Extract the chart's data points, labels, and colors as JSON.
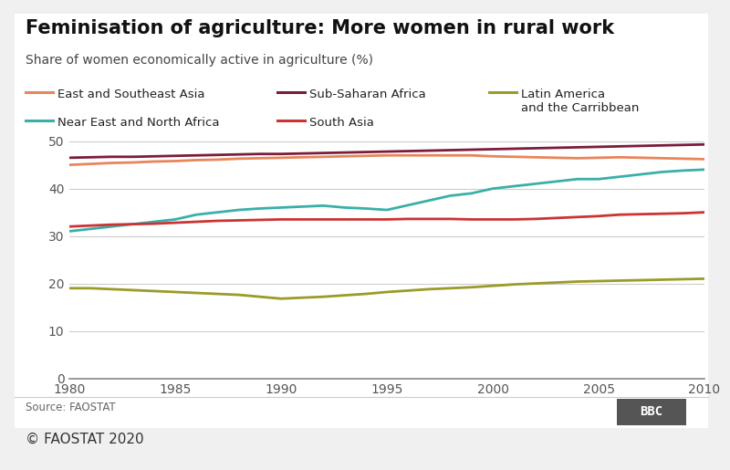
{
  "title": "Feminisation of agriculture: More women in rural work",
  "subtitle": "Share of women economically active in agriculture (%)",
  "source": "Source: FAOSTAT",
  "copyright": "© FAOSTAT 2020",
  "years": [
    1980,
    1981,
    1982,
    1983,
    1984,
    1985,
    1986,
    1987,
    1988,
    1989,
    1990,
    1991,
    1992,
    1993,
    1994,
    1995,
    1996,
    1997,
    1998,
    1999,
    2000,
    2001,
    2002,
    2003,
    2004,
    2005,
    2006,
    2007,
    2008,
    2009,
    2010
  ],
  "series": {
    "East and Southeast Asia": {
      "color": "#E8855A",
      "values": [
        45.0,
        45.2,
        45.4,
        45.5,
        45.7,
        45.8,
        46.0,
        46.1,
        46.3,
        46.4,
        46.5,
        46.6,
        46.7,
        46.8,
        46.9,
        47.0,
        47.0,
        47.0,
        47.0,
        47.0,
        46.8,
        46.7,
        46.6,
        46.5,
        46.4,
        46.5,
        46.6,
        46.5,
        46.4,
        46.3,
        46.2
      ]
    },
    "Sub-Saharan Africa": {
      "color": "#7B1D3A",
      "values": [
        46.5,
        46.6,
        46.7,
        46.7,
        46.8,
        46.9,
        47.0,
        47.1,
        47.2,
        47.3,
        47.3,
        47.4,
        47.5,
        47.6,
        47.7,
        47.8,
        47.9,
        48.0,
        48.1,
        48.2,
        48.3,
        48.4,
        48.5,
        48.6,
        48.7,
        48.8,
        48.9,
        49.0,
        49.1,
        49.2,
        49.3
      ]
    },
    "Latin America\nand the Carribbean": {
      "color": "#9B9B27",
      "values": [
        19.0,
        19.0,
        18.8,
        18.6,
        18.4,
        18.2,
        18.0,
        17.8,
        17.6,
        17.2,
        16.8,
        17.0,
        17.2,
        17.5,
        17.8,
        18.2,
        18.5,
        18.8,
        19.0,
        19.2,
        19.5,
        19.8,
        20.0,
        20.2,
        20.4,
        20.5,
        20.6,
        20.7,
        20.8,
        20.9,
        21.0
      ]
    },
    "Near East and North Africa": {
      "color": "#3AAFA9",
      "values": [
        31.0,
        31.5,
        32.0,
        32.5,
        33.0,
        33.5,
        34.5,
        35.0,
        35.5,
        35.8,
        36.0,
        36.2,
        36.4,
        36.0,
        35.8,
        35.5,
        36.5,
        37.5,
        38.5,
        39.0,
        40.0,
        40.5,
        41.0,
        41.5,
        42.0,
        42.0,
        42.5,
        43.0,
        43.5,
        43.8,
        44.0
      ]
    },
    "South Asia": {
      "color": "#CC3333",
      "values": [
        32.0,
        32.2,
        32.4,
        32.5,
        32.6,
        32.8,
        33.0,
        33.2,
        33.3,
        33.4,
        33.5,
        33.5,
        33.5,
        33.5,
        33.5,
        33.5,
        33.6,
        33.6,
        33.6,
        33.5,
        33.5,
        33.5,
        33.6,
        33.8,
        34.0,
        34.2,
        34.5,
        34.6,
        34.7,
        34.8,
        35.0
      ]
    }
  },
  "xlim": [
    1980,
    2010
  ],
  "ylim": [
    0,
    53
  ],
  "yticks": [
    0,
    10,
    20,
    30,
    40,
    50
  ],
  "xticks": [
    1980,
    1985,
    1990,
    1995,
    2000,
    2005,
    2010
  ],
  "plot_bg_color": "#ffffff",
  "fig_bg_color": "#f0f0f0",
  "grid_color": "#cccccc",
  "title_fontsize": 15,
  "subtitle_fontsize": 10,
  "tick_fontsize": 10,
  "legend_fontsize": 9.5,
  "source_fontsize": 8.5,
  "copyright_fontsize": 11
}
